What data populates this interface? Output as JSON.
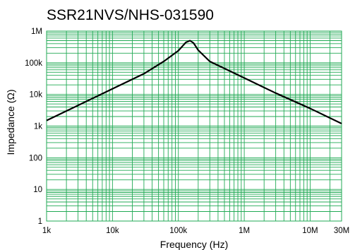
{
  "chart_data": {
    "type": "line",
    "title": "SSR21NVS/NHS-031590",
    "xlabel": "Frequency (Hz)",
    "ylabel": "Impedance (Ω)",
    "xscale": "log",
    "yscale": "log",
    "xlim": [
      1000,
      30000000
    ],
    "ylim": [
      1,
      1000000
    ],
    "grid": true,
    "grid_color": "#22aa55",
    "line_color": "#000000",
    "x_ticks": [
      {
        "value": 1000,
        "label": "1k"
      },
      {
        "value": 10000,
        "label": "10k"
      },
      {
        "value": 100000,
        "label": "100k"
      },
      {
        "value": 1000000,
        "label": "1M"
      },
      {
        "value": 10000000,
        "label": "10M"
      },
      {
        "value": 30000000,
        "label": "30M"
      }
    ],
    "y_ticks": [
      {
        "value": 1,
        "label": "1"
      },
      {
        "value": 10,
        "label": "10"
      },
      {
        "value": 100,
        "label": "100"
      },
      {
        "value": 1000,
        "label": "1k"
      },
      {
        "value": 10000,
        "label": "10k"
      },
      {
        "value": 100000,
        "label": "100k"
      },
      {
        "value": 1000000,
        "label": "1M"
      }
    ],
    "series": [
      {
        "x": [
          1000,
          3000,
          10000,
          30000,
          60000,
          100000,
          130000,
          150000,
          170000,
          200000,
          300000,
          1000000,
          3000000,
          10000000,
          30000000
        ],
        "y": [
          1500,
          4500,
          15000,
          45000,
          110000,
          240000,
          440000,
          500000,
          420000,
          250000,
          110000,
          33000,
          11000,
          3600,
          1200
        ]
      }
    ]
  }
}
